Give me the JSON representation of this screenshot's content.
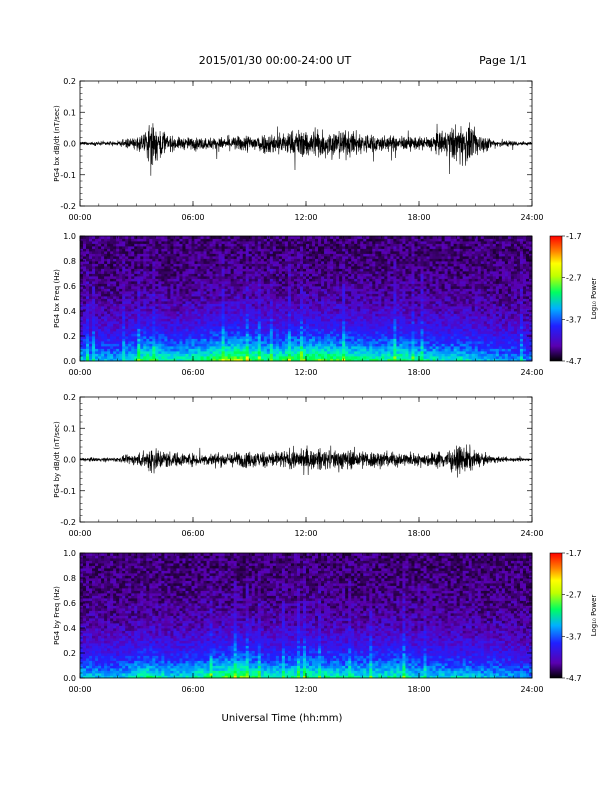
{
  "header": {
    "title": "2015/01/30  00:00-24:00 UT",
    "page": "Page 1/1"
  },
  "xlabel": "Universal Time (hh:mm)",
  "chart_data": [
    {
      "type": "line",
      "ylabel": "PG4 bx dB/dt (nT/sec)",
      "xlim": [
        0,
        24
      ],
      "ylim": [
        -0.2,
        0.2
      ],
      "xticks": [
        "00:00",
        "06:00",
        "12:00",
        "18:00",
        "24:00"
      ],
      "yticks": [
        "-0.2",
        "-0.1",
        "0.0",
        "0.1",
        "0.2"
      ],
      "line_color": "#000000",
      "amplitude_envelope": {
        "x": [
          0,
          2,
          3.5,
          3.8,
          4.2,
          5,
          6,
          8,
          9,
          10,
          11,
          12,
          13,
          14,
          15,
          16,
          17,
          18,
          19,
          20.5,
          21,
          22,
          24
        ],
        "y": [
          0.008,
          0.01,
          0.05,
          0.14,
          0.07,
          0.03,
          0.03,
          0.03,
          0.045,
          0.05,
          0.06,
          0.07,
          0.07,
          0.065,
          0.055,
          0.04,
          0.035,
          0.03,
          0.05,
          0.11,
          0.06,
          0.02,
          0.008
        ]
      }
    },
    {
      "type": "heatmap",
      "ylabel": "PG4 bx Freq (Hz)",
      "xlim": [
        0,
        24
      ],
      "ylim": [
        0,
        1
      ],
      "xticks": [
        "00:00",
        "06:00",
        "12:00",
        "18:00",
        "24:00"
      ],
      "yticks": [
        "0.0",
        "0.2",
        "0.4",
        "0.6",
        "0.8",
        "1.0"
      ],
      "colorbar": {
        "label": "Log₁₀ Power",
        "range": [
          -4.7,
          -1.7
        ],
        "ticks": [
          "-1.7",
          "-2.7",
          "-3.7",
          "-4.7"
        ],
        "colors": [
          "#000000",
          "#5a00b0",
          "#2020ff",
          "#00b0ff",
          "#00ff60",
          "#c0ff00",
          "#ffff00",
          "#ff8000",
          "#ff0000"
        ]
      },
      "intensity_profile": {
        "x": [
          0,
          2,
          3.5,
          5,
          8.5,
          10,
          12,
          14,
          16,
          17,
          18,
          20,
          22,
          24
        ],
        "level": [
          0.45,
          0.4,
          0.6,
          0.5,
          0.7,
          0.55,
          0.65,
          0.6,
          0.55,
          0.6,
          0.5,
          0.5,
          0.4,
          0.35
        ]
      }
    },
    {
      "type": "line",
      "ylabel": "PG4 by dB/dt (nT/sec)",
      "xlim": [
        0,
        24
      ],
      "ylim": [
        -0.2,
        0.2
      ],
      "xticks": [
        "00:00",
        "06:00",
        "12:00",
        "18:00",
        "24:00"
      ],
      "yticks": [
        "-0.2",
        "-0.1",
        "0.0",
        "0.1",
        "0.2"
      ],
      "line_color": "#000000",
      "amplitude_envelope": {
        "x": [
          0,
          2,
          3.5,
          3.8,
          4.2,
          5,
          6,
          8,
          9,
          10,
          11,
          12,
          13,
          14,
          15,
          16,
          17,
          18,
          19,
          20.5,
          21,
          22,
          24
        ],
        "y": [
          0.008,
          0.01,
          0.04,
          0.08,
          0.05,
          0.035,
          0.03,
          0.035,
          0.04,
          0.04,
          0.045,
          0.05,
          0.05,
          0.05,
          0.045,
          0.04,
          0.035,
          0.03,
          0.04,
          0.07,
          0.04,
          0.015,
          0.006
        ]
      }
    },
    {
      "type": "heatmap",
      "ylabel": "PG4 by Freq (Hz)",
      "xlim": [
        0,
        24
      ],
      "ylim": [
        0,
        1
      ],
      "xticks": [
        "00:00",
        "06:00",
        "12:00",
        "18:00",
        "24:00"
      ],
      "yticks": [
        "0.0",
        "0.2",
        "0.4",
        "0.6",
        "0.8",
        "1.0"
      ],
      "colorbar": {
        "label": "Log₁₀ Power",
        "range": [
          -4.7,
          -1.7
        ],
        "ticks": [
          "-1.7",
          "-2.7",
          "-3.7",
          "-4.7"
        ],
        "colors": [
          "#000000",
          "#5a00b0",
          "#2020ff",
          "#00b0ff",
          "#00ff60",
          "#c0ff00",
          "#ffff00",
          "#ff8000",
          "#ff0000"
        ]
      },
      "intensity_profile": {
        "x": [
          0,
          2,
          3.5,
          5,
          8.5,
          10,
          12,
          14,
          16,
          17,
          18,
          20,
          22,
          24
        ],
        "level": [
          0.45,
          0.4,
          0.55,
          0.45,
          0.65,
          0.5,
          0.55,
          0.5,
          0.5,
          0.55,
          0.45,
          0.45,
          0.4,
          0.35
        ]
      }
    }
  ]
}
